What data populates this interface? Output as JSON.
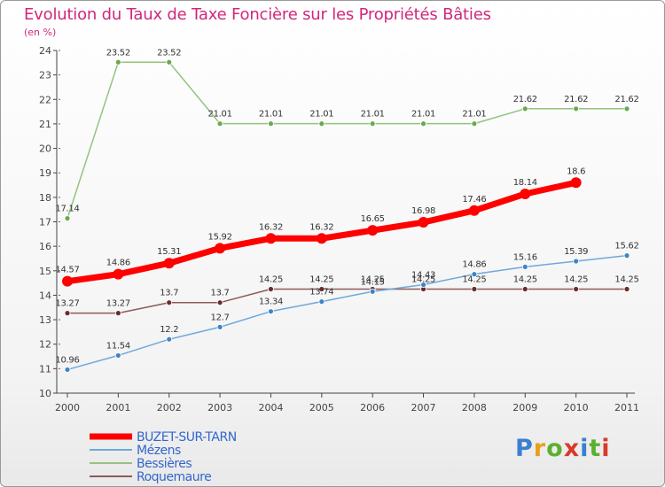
{
  "header": {
    "title": "Evolution du Taux de Taxe Foncière sur les Propriétés Bâties",
    "subtitle": "(en %)"
  },
  "logo": {
    "text": "Proxiti"
  },
  "chart_data": {
    "type": "line",
    "title": "Evolution du Taux de Taxe Foncière sur les Propriétés Bâties",
    "ylabel": "(en %)",
    "xlabel": "",
    "x": [
      "2000",
      "2001",
      "2002",
      "2003",
      "2004",
      "2005",
      "2006",
      "2007",
      "2008",
      "2009",
      "2010",
      "2011"
    ],
    "ylim": [
      10,
      24
    ],
    "yticks": [
      10,
      11,
      12,
      13,
      14,
      15,
      16,
      17,
      18,
      19,
      20,
      21,
      22,
      23,
      24
    ],
    "grid": false,
    "legend_position": "bottom-left",
    "series": [
      {
        "name": "BUZET-SUR-TARN",
        "color": "#ff0000",
        "line_width": 7,
        "marker_radius": 6,
        "values": [
          14.57,
          14.86,
          15.31,
          15.92,
          16.32,
          16.32,
          16.65,
          16.98,
          17.46,
          18.14,
          18.6,
          null
        ],
        "labels": [
          "14.57",
          "14.86",
          "15.31",
          "15.92",
          "16.32",
          "16.32",
          "16.65",
          "16.98",
          "17.46",
          "18.14",
          "18.6",
          null
        ]
      },
      {
        "name": "Mézens",
        "color": "#6fa8dc",
        "marker_color": "#3d85c6",
        "line_width": 1.5,
        "marker_radius": 3,
        "values": [
          10.96,
          11.54,
          12.2,
          12.7,
          13.34,
          13.74,
          14.15,
          14.43,
          14.86,
          15.16,
          15.39,
          15.62
        ],
        "labels": [
          "10.96",
          "11.54",
          "12.2",
          "12.7",
          "13.34",
          "13.74",
          "14.15",
          "14.43",
          "14.86",
          "15.16",
          "15.39",
          "15.62"
        ]
      },
      {
        "name": "Bessières",
        "color": "#93c47d",
        "marker_color": "#6aa84f",
        "line_width": 1.5,
        "marker_radius": 3,
        "values": [
          17.14,
          23.52,
          23.52,
          21.01,
          21.01,
          21.01,
          21.01,
          21.01,
          21.01,
          21.62,
          21.62,
          21.62
        ],
        "labels": [
          "17.14",
          "23.52",
          "23.52",
          "21.01",
          "21.01",
          "21.01",
          "21.01",
          "21.01",
          "21.01",
          "21.62",
          "21.62",
          "21.62"
        ]
      },
      {
        "name": "Roquemaure",
        "color": "#8e5a5a",
        "marker_color": "#6b2c2c",
        "line_width": 1.5,
        "marker_radius": 3,
        "values": [
          13.27,
          13.27,
          13.7,
          13.7,
          14.25,
          14.25,
          14.25,
          14.25,
          14.25,
          14.25,
          14.25,
          14.25
        ],
        "labels": [
          "13.27",
          "13.27",
          "13.7",
          "13.7",
          "14.25",
          "14.25",
          "14.25",
          "14.25",
          "14.25",
          "14.25",
          "14.25",
          "14.25"
        ]
      }
    ]
  }
}
